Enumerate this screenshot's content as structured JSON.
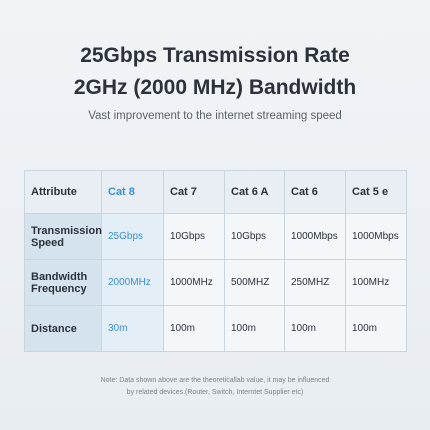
{
  "header": {
    "title_lines": [
      "25Gbps Transmission Rate",
      "2GHz (2000 MHz) Bandwidth"
    ],
    "subtitle": "Vast improvement to the internet streaming speed"
  },
  "table": {
    "columns": [
      "Attribute",
      "Cat 8",
      "Cat 7",
      "Cat 6 A",
      "Cat 6",
      "Cat 5 e"
    ],
    "rows": [
      [
        "Transmission Speed",
        "25Gbps",
        "10Gbps",
        "10Gbps",
        "1000Mbps",
        "1000Mbps"
      ],
      [
        "Bandwidth Frequency",
        "2000MHz",
        "1000MHz",
        "500MHZ",
        "250MHZ",
        "100MHz"
      ],
      [
        "Distance",
        "30m",
        "100m",
        "100m",
        "100m",
        "100m"
      ]
    ]
  },
  "note": [
    "Note: Data shown above are the theoreticallab value, it may be influenced",
    "by related devices.(Router, Switch, Interntet Supplier etc)"
  ]
}
